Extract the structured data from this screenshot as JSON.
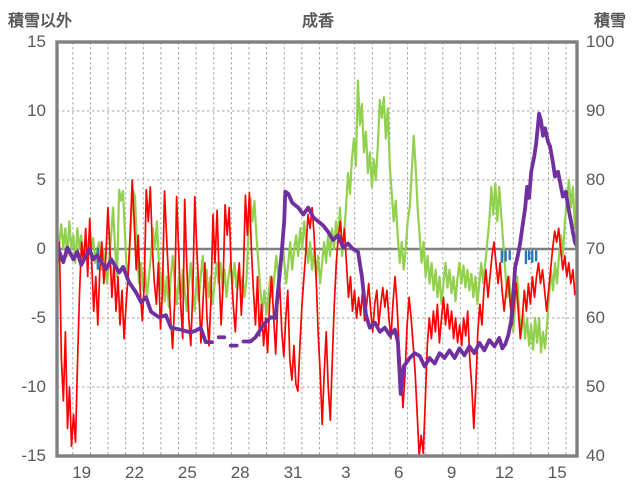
{
  "titles": {
    "left_axis": "積雪以外",
    "chart": "成香",
    "right_axis": "積雪"
  },
  "chart_data": {
    "type": "line",
    "title": "成香",
    "legend": "none",
    "grid": "dashed",
    "x_axis": {
      "unit": "day-of-month (Dec 19 - Jan 16)",
      "domain": [
        -0.9,
        28.62
      ],
      "gridlines": [
        0,
        1,
        2,
        3,
        4,
        5,
        6,
        7,
        8,
        9,
        10,
        11,
        12,
        13,
        14,
        15,
        16,
        17,
        18,
        19,
        20,
        21,
        22,
        23,
        24,
        25,
        26,
        27,
        28
      ],
      "tick_labels": [
        {
          "label": "19",
          "t": 0.5
        },
        {
          "label": "22",
          "t": 3.5
        },
        {
          "label": "25",
          "t": 6.5
        },
        {
          "label": "28",
          "t": 9.5
        },
        {
          "label": "31",
          "t": 12.5
        },
        {
          "label": "3",
          "t": 15.5
        },
        {
          "label": "6",
          "t": 18.5
        },
        {
          "label": "9",
          "t": 21.5
        },
        {
          "label": "12",
          "t": 24.5
        },
        {
          "label": "15",
          "t": 27.5
        }
      ]
    },
    "y_left": {
      "title": "積雪以外",
      "min": -15,
      "max": 15,
      "ticks": [
        15,
        10,
        5,
        0,
        -5,
        -10,
        -15
      ],
      "gridlines": [
        10,
        5,
        -5,
        -10
      ],
      "zero_line": 0
    },
    "y_right": {
      "title": "積雪",
      "min": 40,
      "max": 100,
      "ticks": [
        100,
        90,
        80,
        70,
        60,
        50,
        40
      ]
    },
    "colors": {
      "red": "#FF0000",
      "green": "#92D050",
      "purple": "#7030A0",
      "blue": "#2E75B6",
      "grid": "#A6A6A6",
      "frame": "#808080",
      "text": "#595959"
    },
    "series": [
      {
        "name": "green-left-axis",
        "axis": "left",
        "color": "#92D050",
        "width": 2.2,
        "sampling": {
          "t0": -0.88,
          "t1": 28.5
        },
        "values": [
          1,
          0.5,
          1.8,
          0,
          1.5,
          -0.5,
          2,
          0,
          1,
          -1,
          1.5,
          0,
          1,
          -0.8,
          0.5,
          -0.5,
          1,
          0,
          0.8,
          -1,
          0,
          0.5,
          -1.5,
          0,
          -1,
          -2.5,
          -1,
          1,
          3,
          0,
          -2,
          4.3,
          3.5,
          4.2,
          1,
          -2,
          -1,
          2,
          4.3,
          3.8,
          0,
          -2.5,
          -1,
          -3,
          -1.5,
          -3.5,
          -2,
          -0.5,
          1.5,
          0,
          2,
          -1,
          -3,
          -1.5,
          -3.8,
          -2,
          -4.2,
          -2,
          -0.5,
          -2.5,
          -4,
          -2,
          -3.5,
          -1.5,
          -3,
          -4.5,
          -2.5,
          -1,
          -3,
          -4.5,
          -2,
          -3.8,
          -2,
          -0.5,
          -2.8,
          -1.5,
          -3.5,
          -2,
          -4,
          -2.5,
          -1,
          -2.5,
          -1,
          -3,
          -1.5,
          -3.5,
          -2,
          -1,
          -2.5,
          -1,
          -2.8,
          -1.5,
          -3,
          -2,
          -3.5,
          -2.2,
          1,
          3.7,
          2,
          3.5,
          1,
          -1,
          -3,
          -4.5,
          -3,
          -4.8,
          -3.5,
          -2,
          -3.5,
          -2,
          -0.5,
          -2,
          -1,
          0.5,
          -1,
          -2.5,
          -1,
          0.5,
          -1.5,
          0,
          1,
          -0.5,
          1.5,
          0,
          2,
          0.5,
          -1,
          0.5,
          -1.5,
          0,
          -2,
          -0.5,
          -2.5,
          -1,
          0.5,
          -1,
          1,
          -0.5,
          1.5,
          0,
          2,
          0.5,
          3,
          -0.5,
          1,
          3,
          5.5,
          4,
          6.5,
          8,
          6,
          12.2,
          9,
          10.5,
          7,
          8.5,
          5.5,
          7,
          4.5,
          6.5,
          5,
          7.5,
          10.8,
          9.5,
          11,
          8,
          10.2,
          6,
          4,
          2,
          3.5,
          1,
          -1,
          0.5,
          -1.5,
          0,
          2,
          3,
          5.5,
          8.2,
          6,
          3,
          1,
          -1,
          0.5,
          -2,
          -0.5,
          -2.5,
          -1,
          -3,
          -1.5,
          -3.5,
          -2,
          -4,
          -2.5,
          -1,
          -2.8,
          -1.5,
          -3.2,
          -2,
          -3.8,
          -2.2,
          -1,
          -2.5,
          -1.2,
          -2.8,
          -1.5,
          -3,
          -1.8,
          -3.5,
          -2,
          -4,
          -2.5,
          -1,
          -2.5,
          -1,
          0.5,
          2,
          4.5,
          2.5,
          4.8,
          2,
          4.5,
          2.5,
          0.5,
          -1.5,
          -3.5,
          -2,
          -4.5,
          -6,
          -4,
          -2,
          -4.5,
          -6.2,
          -4.5,
          -6.5,
          -5,
          -7,
          -5.5,
          -7.3,
          -5,
          -6.8,
          -5,
          -7.5,
          -6,
          -7.2,
          -5.5,
          -3.5,
          -1.5,
          -3,
          -1,
          -2.5,
          -0.5,
          1,
          -0.5,
          2,
          3.5,
          5,
          3,
          4.5,
          1.5
        ]
      },
      {
        "name": "red-left-axis",
        "axis": "left",
        "color": "#FF0000",
        "width": 1.7,
        "sampling": {
          "t0": -0.88,
          "t1": 28.5
        },
        "values": [
          -1.5,
          0.5,
          -8,
          -11,
          -6,
          -13,
          -10,
          -14.3,
          -12,
          -14,
          -8,
          -3,
          0.5,
          -1,
          1.5,
          -2,
          2.2,
          -1,
          -4.5,
          -2,
          -5.5,
          -1.5,
          0.5,
          -2.5,
          -0.5,
          3,
          0,
          -3.5,
          -1,
          -4.5,
          -2,
          -5.5,
          -3,
          -6.5,
          -4,
          -2,
          1,
          5,
          2,
          -1.5,
          1,
          -3,
          -5.2,
          -2.5,
          4.3,
          2,
          4.5,
          0,
          -2.5,
          -4,
          -1,
          -5.8,
          -3,
          4.2,
          1,
          -2,
          -5,
          -7.2,
          -4,
          3.8,
          0,
          -4,
          -6.5,
          3.6,
          -1,
          -5,
          -7,
          -3,
          3.8,
          0,
          -3,
          -6.8,
          -4,
          -1,
          -5,
          -7,
          -3.5,
          2.5,
          -1,
          2.8,
          -2,
          -5.5,
          -2.5,
          3.2,
          1,
          3,
          -1.5,
          -4,
          -6,
          -3,
          -1,
          -4.8,
          -2,
          3.9,
          1,
          4.1,
          0,
          -3,
          -5.5,
          -2,
          -6.3,
          -4,
          -7,
          -5,
          -7.5,
          -4,
          -2,
          -5,
          -7.6,
          -4,
          -2.5,
          -6,
          -7.8,
          -5,
          -3,
          -8,
          -9.5,
          -7,
          -9.8,
          -10.3,
          -7,
          -4,
          -2,
          0,
          2.5,
          1.5,
          3,
          1,
          -2,
          -6,
          -9,
          -12.7,
          -9,
          -6,
          -10,
          -12.4,
          -8,
          -4,
          -1,
          1,
          2,
          0,
          1.5,
          -1,
          -3.5,
          -2,
          -4.5,
          -3,
          -5,
          -3.5,
          -4.8,
          -3,
          -5.2,
          -4,
          -2.5,
          -4.5,
          -6,
          -4,
          -3,
          -5.5,
          -4,
          -2.8,
          -4.2,
          -3,
          -5,
          -6.5,
          -4,
          -2,
          -4,
          -7,
          -9,
          -11.5,
          -9,
          -5.5,
          -3.5,
          -5,
          -7,
          -9,
          -12,
          -15,
          -13.5,
          -14.8,
          -11,
          -7,
          -5,
          -6.5,
          -4.5,
          -6,
          -4,
          -6.8,
          -5,
          -3.5,
          -5.5,
          -4,
          -5.8,
          -4.5,
          -6.5,
          -5,
          -6.8,
          -5.5,
          -7,
          -5,
          -6.3,
          -4.5,
          -8,
          -10,
          -13,
          -10,
          -6,
          -4,
          -5.5,
          -3,
          -1.5,
          -3.5,
          -2,
          -0.5,
          0.5,
          -1,
          -2.5,
          -1,
          -3,
          -4.5,
          -3,
          -2,
          -4,
          -5.5,
          -4,
          -2.5,
          -4.5,
          -6.5,
          -5,
          -3,
          -4.5,
          -2.5,
          -4,
          -2,
          -3.5,
          -2,
          -1,
          -2.5,
          -1.5,
          -3,
          -4.5,
          -3,
          -1.5,
          0,
          1.3,
          0.5,
          1.5,
          0,
          -1.5,
          -0.5,
          -2,
          -1,
          -2.5,
          -1.5,
          -3.3
        ]
      },
      {
        "name": "blue-event-ticks",
        "axis": "left",
        "color": "#2E75B6",
        "width": 2.4,
        "ticks": [
          {
            "t": 1.42,
            "from": 0.1,
            "to": -1.5
          },
          {
            "t": 24.35,
            "from": -0.1,
            "to": -1.0
          },
          {
            "t": 24.57,
            "from": -0.1,
            "to": -0.9
          },
          {
            "t": 24.8,
            "from": -0.1,
            "to": -0.8
          },
          {
            "t": 25.72,
            "from": -0.1,
            "to": -1.1
          },
          {
            "t": 25.9,
            "from": -0.1,
            "to": -0.8
          },
          {
            "t": 26.08,
            "from": -0.1,
            "to": -1.0
          },
          {
            "t": 26.3,
            "from": -0.1,
            "to": -0.9
          }
        ]
      },
      {
        "name": "snow-depth-purple",
        "axis": "right",
        "color": "#7030A0",
        "width": 3.8,
        "segments": [
          [
            [
              -0.88,
              70.3
            ],
            [
              -0.54,
              68.1
            ],
            [
              -0.31,
              70.2
            ],
            [
              0.03,
              68.5
            ],
            [
              0.25,
              69.6
            ],
            [
              0.48,
              67.7
            ],
            [
              0.76,
              69.1
            ],
            [
              0.93,
              70.0
            ],
            [
              1.16,
              68.5
            ],
            [
              1.38,
              69.1
            ],
            [
              1.61,
              68.1
            ],
            [
              1.89,
              67.1
            ],
            [
              2.18,
              68.5
            ],
            [
              2.63,
              66.6
            ],
            [
              2.85,
              67.4
            ],
            [
              3.19,
              65.2
            ],
            [
              3.59,
              63.7
            ],
            [
              3.87,
              62.3
            ],
            [
              4.15,
              63.0
            ],
            [
              4.44,
              60.9
            ],
            [
              4.89,
              60.1
            ],
            [
              5.28,
              60.4
            ],
            [
              5.57,
              58.6
            ],
            [
              6.13,
              58.3
            ],
            [
              6.69,
              57.9
            ],
            [
              7.0,
              58.2
            ],
            [
              7.26,
              58.6
            ],
            [
              7.54,
              56.5
            ],
            [
              7.9,
              56.5
            ]
          ],
          [
            [
              8.28,
              57.2
            ],
            [
              8.6,
              57.2
            ]
          ],
          [
            [
              8.96,
              56.0
            ],
            [
              9.3,
              56.0
            ]
          ],
          [
            [
              9.69,
              56.6
            ],
            [
              10.08,
              56.6
            ],
            [
              10.37,
              57.2
            ],
            [
              10.82,
              59.0
            ],
            [
              11.22,
              60.1
            ],
            [
              11.5,
              60.0
            ],
            [
              11.61,
              63.0
            ],
            [
              11.84,
              69.0
            ],
            [
              12.0,
              74.0
            ],
            [
              12.06,
              78.3
            ],
            [
              12.23,
              78.0
            ],
            [
              12.46,
              76.7
            ],
            [
              12.8,
              76.0
            ],
            [
              13.08,
              75.0
            ],
            [
              13.36,
              76.0
            ],
            [
              13.65,
              74.6
            ],
            [
              13.93,
              74.0
            ],
            [
              14.21,
              73.4
            ],
            [
              14.49,
              72.5
            ],
            [
              14.77,
              71.3
            ],
            [
              15.06,
              72.0
            ],
            [
              15.34,
              70.2
            ],
            [
              15.62,
              70.8
            ],
            [
              15.9,
              70.0
            ],
            [
              16.19,
              69.6
            ],
            [
              16.41,
              66.0
            ],
            [
              16.64,
              60.4
            ],
            [
              16.86,
              58.6
            ],
            [
              17.15,
              59.3
            ],
            [
              17.43,
              58.0
            ],
            [
              17.71,
              58.6
            ],
            [
              18.0,
              57.5
            ],
            [
              18.28,
              58.3
            ],
            [
              18.45,
              56.5
            ],
            [
              18.61,
              49.0
            ],
            [
              18.79,
              53.0
            ],
            [
              19.12,
              54.2
            ],
            [
              19.4,
              54.9
            ],
            [
              19.69,
              54.5
            ],
            [
              19.97,
              53.0
            ],
            [
              20.25,
              54.2
            ],
            [
              20.54,
              53.4
            ],
            [
              20.82,
              54.9
            ],
            [
              21.1,
              54.2
            ],
            [
              21.38,
              55.3
            ],
            [
              21.67,
              54.2
            ],
            [
              21.95,
              55.6
            ],
            [
              22.23,
              54.6
            ],
            [
              22.51,
              55.9
            ],
            [
              22.79,
              54.9
            ],
            [
              23.08,
              56.4
            ],
            [
              23.36,
              55.3
            ],
            [
              23.64,
              56.8
            ],
            [
              23.93,
              55.9
            ],
            [
              24.21,
              57.1
            ],
            [
              24.38,
              55.6
            ],
            [
              24.55,
              56.2
            ],
            [
              24.72,
              57.5
            ],
            [
              24.89,
              59.7
            ],
            [
              25.11,
              67.4
            ],
            [
              25.28,
              69.3
            ],
            [
              25.4,
              71.0
            ],
            [
              25.51,
              73.0
            ],
            [
              25.68,
              76.0
            ],
            [
              25.79,
              79.0
            ],
            [
              25.9,
              77.4
            ],
            [
              26.02,
              81.2
            ],
            [
              26.19,
              83.4
            ],
            [
              26.3,
              85.2
            ],
            [
              26.47,
              89.6
            ],
            [
              26.58,
              88.5
            ],
            [
              26.69,
              86.4
            ],
            [
              26.81,
              87.5
            ],
            [
              26.98,
              85.5
            ],
            [
              27.09,
              84.9
            ],
            [
              27.26,
              82.5
            ],
            [
              27.37,
              80.5
            ],
            [
              27.54,
              81.2
            ],
            [
              27.65,
              79.8
            ],
            [
              27.82,
              77.6
            ],
            [
              27.99,
              78.3
            ],
            [
              28.11,
              76.2
            ],
            [
              28.28,
              74.0
            ],
            [
              28.39,
              72.4
            ],
            [
              28.5,
              71.0
            ],
            [
              28.61,
              70.4
            ]
          ]
        ]
      }
    ]
  }
}
